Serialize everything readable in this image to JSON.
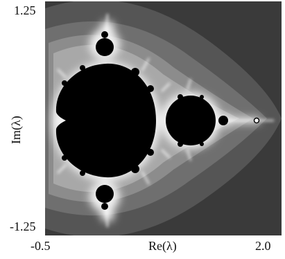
{
  "figure": {
    "axes": {
      "y_max_label": "1.25",
      "y_min_label": "-1.25",
      "x_min_label": "-0.5",
      "x_max_label": "2.0",
      "x_title": "Re(λ)",
      "y_title": "Im(λ)"
    },
    "plot": {
      "x_range": [
        -0.5,
        2.0
      ],
      "y_range": [
        -1.25,
        1.25
      ],
      "set_color": "#000000",
      "background_color": "#3a3a3a",
      "halo_color": "#ffffff"
    }
  }
}
